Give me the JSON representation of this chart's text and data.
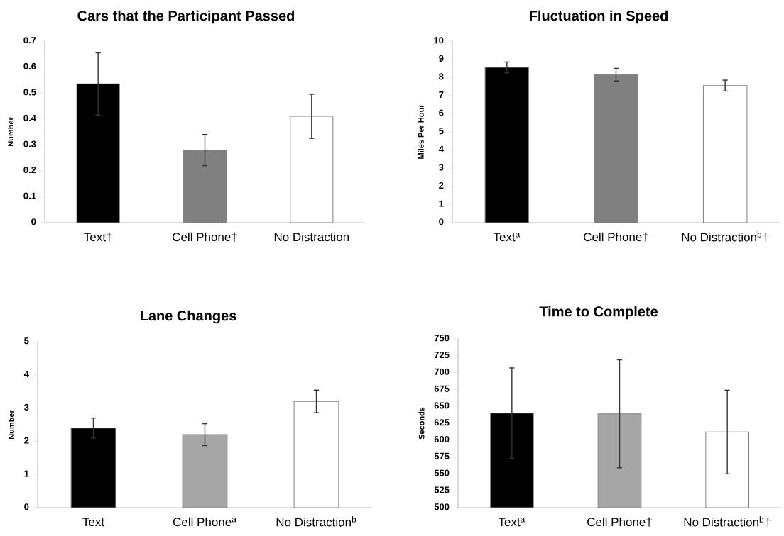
{
  "chart_data": [
    {
      "type": "bar",
      "title": "Cars that the Participant Passed",
      "ylabel": "Number",
      "categories": [
        "Text†",
        "Cell Phone†",
        "No Distraction"
      ],
      "values": [
        0.535,
        0.28,
        0.41
      ],
      "colors": [
        "#000000",
        "#808080",
        "#ffffff"
      ],
      "errors": [
        0.12,
        0.06,
        0.085
      ],
      "ylim": [
        0,
        0.7
      ],
      "yticks": [
        0,
        0.1,
        0.2,
        0.3,
        0.4,
        0.5,
        0.6,
        0.7
      ]
    },
    {
      "type": "bar",
      "title": "Fluctuation in Speed",
      "ylabel": "Miles Per Hour",
      "categories": [
        "Text$^{a}$",
        "Cell Phone†",
        "No Distraction$^{b}$†"
      ],
      "values": [
        8.55,
        8.15,
        7.55
      ],
      "colors": [
        "#000000",
        "#808080",
        "#ffffff"
      ],
      "errors": [
        0.3,
        0.35,
        0.3
      ],
      "ylim": [
        0,
        10
      ],
      "yticks": [
        0,
        1,
        2,
        3,
        4,
        5,
        6,
        7,
        8,
        9,
        10
      ]
    },
    {
      "type": "bar",
      "title": "Lane Changes",
      "ylabel": "Number",
      "categories": [
        "Text",
        "Cell Phone$^{a}$",
        "No Distraction$^{b}$"
      ],
      "values": [
        2.4,
        2.2,
        3.2
      ],
      "colors": [
        "#000000",
        "#a6a6a6",
        "#ffffff"
      ],
      "errors": [
        0.3,
        0.33,
        0.34
      ],
      "ylim": [
        0,
        5
      ],
      "yticks": [
        0,
        1,
        2,
        3,
        4,
        5
      ]
    },
    {
      "type": "bar",
      "title": "Time to Complete",
      "ylabel": "Seconds",
      "categories": [
        "Text$^{a}$",
        "Cell Phone†",
        "No Distraction$^{b}$†"
      ],
      "values": [
        640,
        639,
        612
      ],
      "colors": [
        "#000000",
        "#a6a6a6",
        "#ffffff"
      ],
      "errors": [
        67,
        80,
        62
      ],
      "ylim": [
        500,
        750
      ],
      "yticks": [
        500,
        525,
        550,
        575,
        600,
        625,
        650,
        675,
        700,
        725,
        750
      ]
    }
  ]
}
